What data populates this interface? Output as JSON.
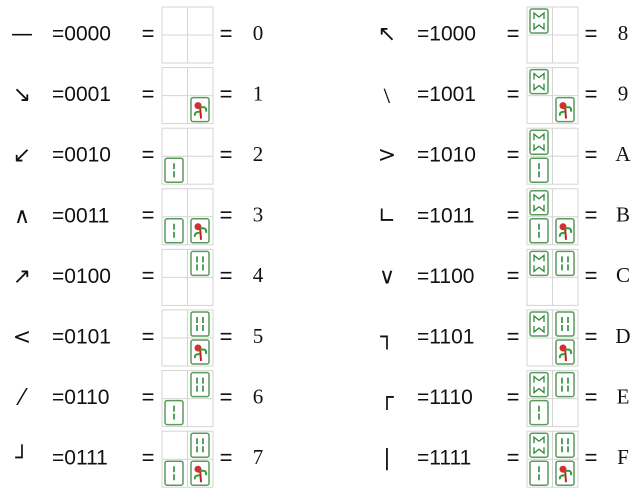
{
  "equals": "=",
  "rows": [
    {
      "symbol": "—",
      "code": "=0000",
      "value": "0"
    },
    {
      "symbol": "↘",
      "code": "=0001",
      "value": "1"
    },
    {
      "symbol": "↙",
      "code": "=0010",
      "value": "2"
    },
    {
      "symbol": "∧",
      "code": "=0011",
      "value": "3"
    },
    {
      "symbol": "↗",
      "code": "=0100",
      "value": "4"
    },
    {
      "symbol": "<",
      "code": "=0101",
      "value": "5"
    },
    {
      "symbol": "⁄",
      "code": "=0110",
      "value": "6"
    },
    {
      "symbol": "┘",
      "code": "=0111",
      "value": "7"
    },
    {
      "symbol": "↖",
      "code": "=1000",
      "value": "8"
    },
    {
      "symbol": "﹨",
      "code": "=1001",
      "value": "9"
    },
    {
      "symbol": ">",
      "code": "=1010",
      "value": "A"
    },
    {
      "symbol": "∟",
      "code": "=1011",
      "value": "B"
    },
    {
      "symbol": "∨",
      "code": "=1100",
      "value": "C"
    },
    {
      "symbol": "┐",
      "code": "=1101",
      "value": "D"
    },
    {
      "symbol": "┌",
      "code": "=1110",
      "value": "E"
    },
    {
      "symbol": "|",
      "code": "=1111",
      "value": "F"
    }
  ]
}
